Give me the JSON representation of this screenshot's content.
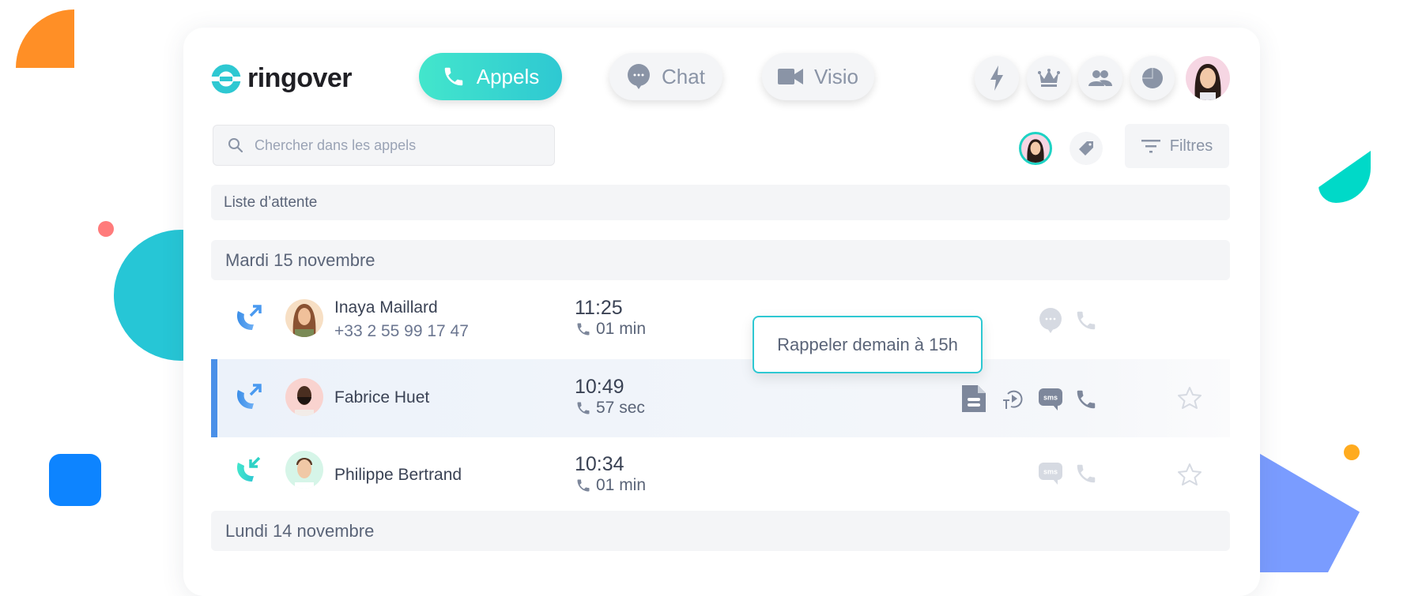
{
  "brand": {
    "name": "ringover",
    "accent": "#2ec8d2",
    "accent_start": "#43e6cc"
  },
  "nav": {
    "tabs": [
      {
        "label": "Appels",
        "icon": "phone-icon",
        "active": true
      },
      {
        "label": "Chat",
        "icon": "chat-bubble-icon",
        "active": false
      },
      {
        "label": "Visio",
        "icon": "video-camera-icon",
        "active": false
      }
    ],
    "actions": [
      "lightning-icon",
      "crown-icon",
      "users-icon",
      "pie-chart-icon"
    ]
  },
  "search": {
    "placeholder": "Chercher dans les appels",
    "value": ""
  },
  "filters": {
    "label": "Filtres"
  },
  "queue": {
    "label": "Liste d’attente"
  },
  "groups": [
    {
      "date": "Mardi 15 novembre",
      "calls": [
        {
          "direction": "outgoing",
          "name": "Inaya Maillard",
          "number": "+33 2 55 99 17 47",
          "time": "11:25",
          "duration": "01 min",
          "selected": false,
          "actions": [
            "chat-icon",
            "phone-icon"
          ]
        },
        {
          "direction": "outgoing",
          "name": "Fabrice Huet",
          "number": "",
          "time": "10:49",
          "duration": "57 sec",
          "selected": true,
          "actions": [
            "document-icon",
            "transcript-play-icon",
            "sms-icon",
            "phone-icon",
            "star-icon"
          ]
        },
        {
          "direction": "incoming",
          "name": "Philippe Bertrand",
          "number": "",
          "time": "10:34",
          "duration": "01 min",
          "selected": false,
          "actions": [
            "sms-icon",
            "phone-icon",
            "star-icon"
          ]
        }
      ]
    },
    {
      "date": "Lundi 14 novembre",
      "calls": []
    }
  ],
  "tooltip": {
    "text": "Rappeler demain à 15h"
  }
}
